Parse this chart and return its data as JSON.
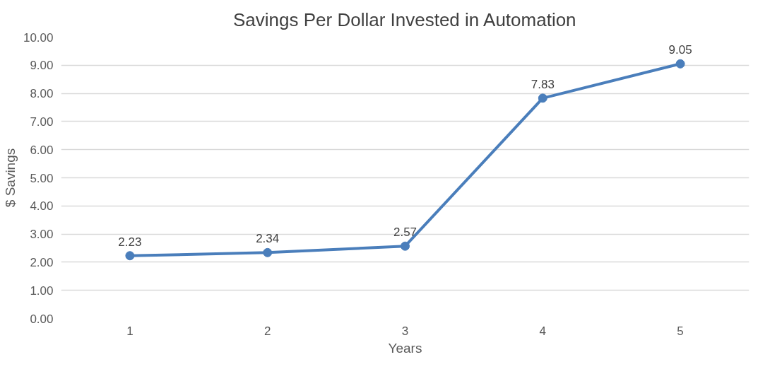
{
  "chart_data": {
    "type": "line",
    "title": "Savings Per Dollar Invested in Automation",
    "xlabel": "Years",
    "ylabel": "$ Savings",
    "categories": [
      "1",
      "2",
      "3",
      "4",
      "5"
    ],
    "series": [
      {
        "color": "#4a7ebb",
        "values": [
          2.23,
          2.34,
          2.57,
          7.83,
          9.05
        ]
      }
    ],
    "ylim": [
      0,
      10
    ],
    "yticks": [
      {
        "value": 0,
        "label": "0.00"
      },
      {
        "value": 1,
        "label": "1.00"
      },
      {
        "value": 2,
        "label": "2.00"
      },
      {
        "value": 3,
        "label": "3.00"
      },
      {
        "value": 4,
        "label": "4.00"
      },
      {
        "value": 5,
        "label": "5.00"
      },
      {
        "value": 6,
        "label": "6.00"
      },
      {
        "value": 7,
        "label": "7.00"
      },
      {
        "value": 8,
        "label": "8.00"
      },
      {
        "value": 9,
        "label": "9.00"
      },
      {
        "value": 10,
        "label": "10.00"
      }
    ],
    "grid": "y",
    "marker": "circle",
    "line_style": "solid",
    "data_labels": true
  }
}
